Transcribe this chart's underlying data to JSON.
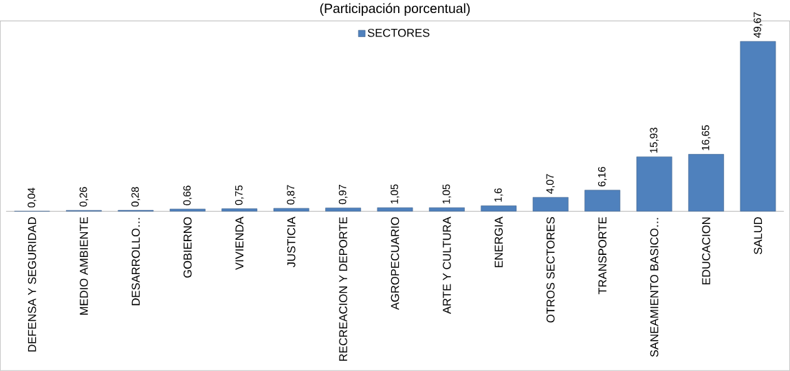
{
  "chart_data": {
    "type": "bar",
    "title": "(Participación porcentual)",
    "categories": [
      "DEFENSA Y SEGURIDAD",
      "MEDIO AMBIENTE",
      "DESARROLLO…",
      "GOBIERNO",
      "VIVIENDA",
      "JUSTICIA",
      "RECREACION Y DEPORTE",
      "AGROPECUARIO",
      "ARTE Y CULTURA",
      "ENERGIA",
      "OTROS SECTORES",
      "TRANSPORTE",
      "SANEAMIENTO BASICO…",
      "EDUCACION",
      "SALUD"
    ],
    "series": [
      {
        "name": "SECTORES",
        "color": "#4f81bd",
        "values": [
          0.04,
          0.26,
          0.28,
          0.66,
          0.75,
          0.87,
          0.97,
          1.05,
          1.05,
          1.6,
          4.07,
          6.16,
          15.93,
          16.65,
          49.67
        ],
        "value_labels": [
          "0,04",
          "0,26",
          "0,28",
          "0,66",
          "0,75",
          "0,87",
          "0,97",
          "1,05",
          "1,05",
          "1,6",
          "4,07",
          "6,16",
          "15,93",
          "16,65",
          "49,67"
        ]
      }
    ],
    "legend": "top"
  }
}
